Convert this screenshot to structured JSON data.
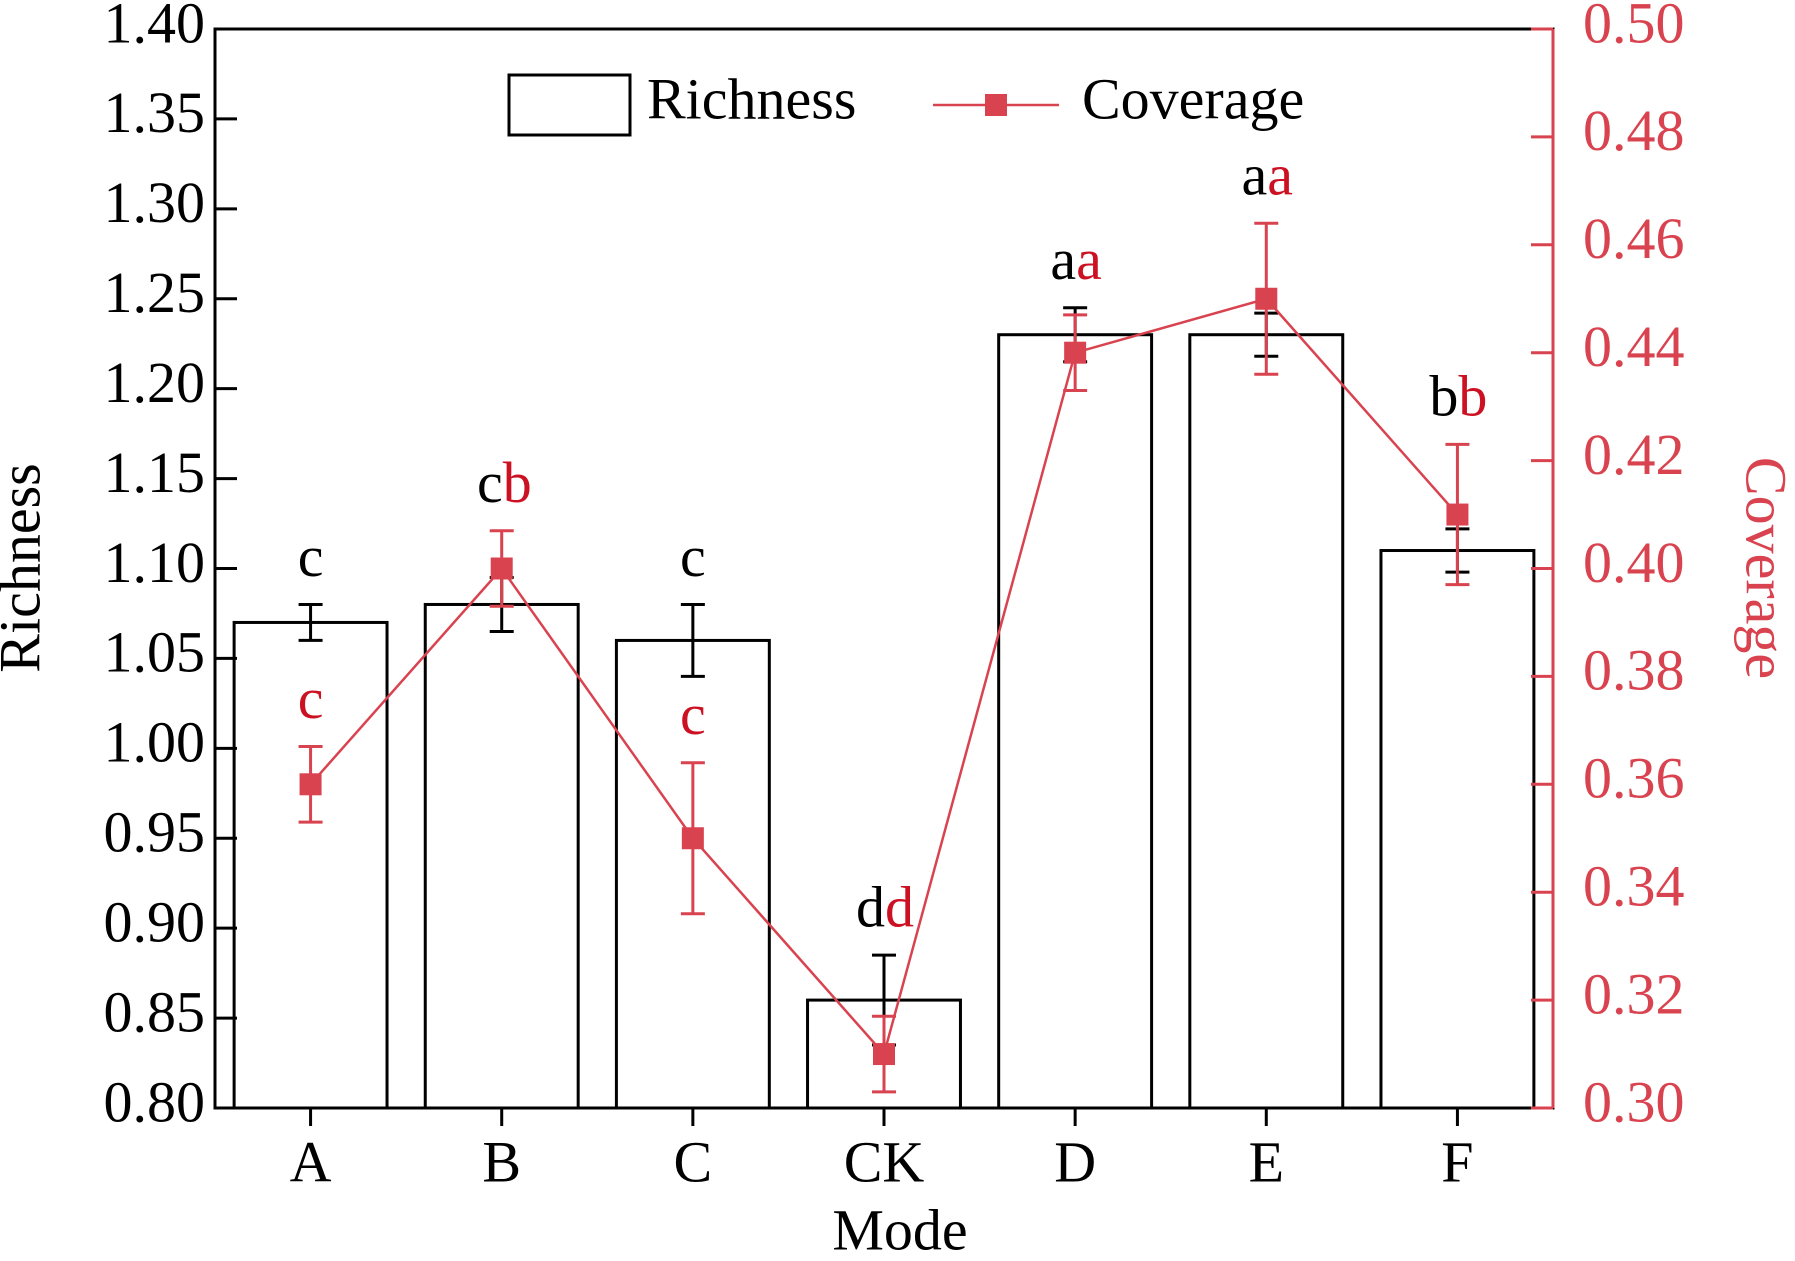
{
  "chart_data": {
    "type": "bar-line",
    "x_label": "Mode",
    "y_label": "Richness",
    "y2_label": "Coverage",
    "categories": [
      "A",
      "B",
      "C",
      "CK",
      "D",
      "E",
      "F"
    ],
    "series": [
      {
        "name": "Richness",
        "type": "bar",
        "color": "#000000",
        "values": [
          1.07,
          1.08,
          1.06,
          0.86,
          1.23,
          1.23,
          1.11
        ],
        "errors": [
          0.01,
          0.015,
          0.02,
          0.025,
          0.015,
          0.012,
          0.012
        ],
        "letters": [
          "c",
          "c",
          "c",
          "d",
          "a",
          "a",
          "b"
        ]
      },
      {
        "name": "Coverage",
        "type": "line",
        "axis": "y2",
        "color": "#d9434f",
        "letter_color": "#cc1122",
        "values": [
          0.36,
          0.4,
          0.35,
          0.31,
          0.44,
          0.45,
          0.41
        ],
        "errors": [
          0.007,
          0.007,
          0.014,
          0.007,
          0.007,
          0.014,
          0.013
        ],
        "letters": [
          "c",
          "b",
          "c",
          "d",
          "a",
          "a",
          "b"
        ]
      }
    ],
    "ylim": [
      0.8,
      1.4
    ],
    "yticks": [
      {
        "value": 0.8,
        "label": "0.80"
      },
      0.85,
      {
        "value": 0.9,
        "label": "0.90"
      },
      0.95,
      {
        "value": 1.0,
        "label": "1.00"
      },
      1.05,
      {
        "value": 1.1,
        "label": "1.10"
      },
      1.15,
      {
        "value": 1.2,
        "label": "1.20"
      },
      1.25,
      {
        "value": 1.3,
        "label": "1.30"
      },
      1.35,
      {
        "value": 1.4,
        "label": "1.40"
      }
    ],
    "y2lim": [
      0.3,
      0.5
    ],
    "y2ticks": [
      {
        "value": 0.3,
        "label": "0.30"
      },
      0.32,
      0.34,
      0.36,
      0.38,
      {
        "value": 0.4,
        "label": "0.40"
      },
      0.42,
      0.44,
      0.46,
      0.48,
      {
        "value": 0.5,
        "label": "0.50"
      }
    ],
    "legend": "top"
  }
}
